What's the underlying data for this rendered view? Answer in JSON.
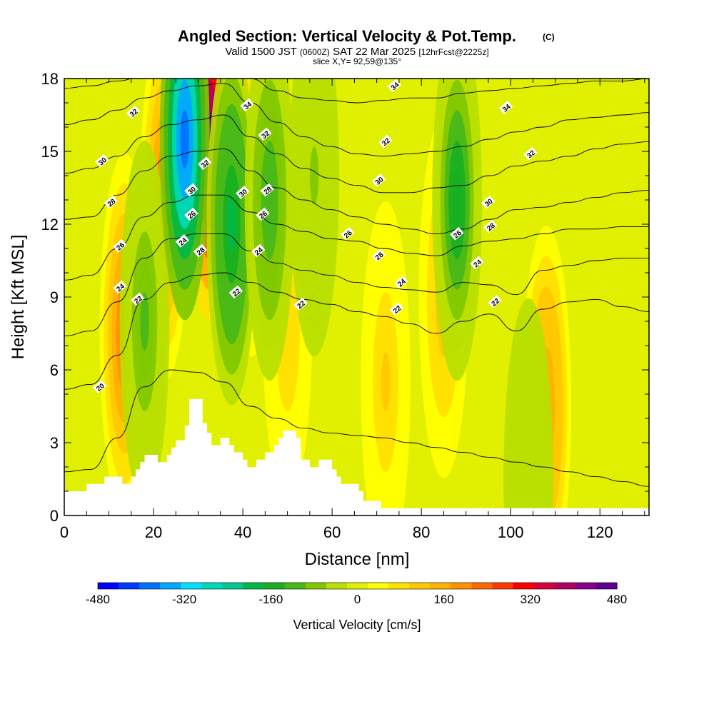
{
  "title": {
    "main": "Angled Section: Vertical Velocity & Pot.Temp.",
    "main_tag": "(C)",
    "valid_prefix": "Valid 1500 JST",
    "valid_utc": "(0600Z)",
    "valid_date": "SAT 22 Mar 2025",
    "forecast": "[12hrFcst@2225z]",
    "slice": "slice X,Y= 92,59@135°"
  },
  "colorbar": {
    "title": "Vertical Velocity [cm/s]",
    "tick_labels": [
      "-480",
      "-320",
      "-160",
      "0",
      "160",
      "320",
      "480"
    ],
    "colors": [
      "#0000ff",
      "#0038ff",
      "#0070ff",
      "#00a8ff",
      "#00e0ff",
      "#00d8b8",
      "#00c890",
      "#00b848",
      "#18b020",
      "#48b818",
      "#80c800",
      "#b8e000",
      "#e0f000",
      "#ffff00",
      "#ffe000",
      "#ffc800",
      "#ffb000",
      "#ff9000",
      "#ff6800",
      "#ff3800",
      "#ff0000",
      "#d8003c",
      "#b00060",
      "#880088",
      "#600090"
    ]
  },
  "chart_data": {
    "type": "heatmap",
    "title": "Angled Section: Vertical Velocity & Pot.Temp.",
    "xlabel": "Distance [nm]",
    "ylabel": "Height [Kft MSL]",
    "xlim": [
      0,
      131
    ],
    "ylim": [
      0,
      18
    ],
    "x_ticks": [
      0,
      20,
      40,
      60,
      80,
      100,
      120
    ],
    "y_ticks": [
      0,
      3,
      6,
      9,
      12,
      15,
      18
    ],
    "color_variable": "Vertical Velocity [cm/s]",
    "color_range": [
      -480,
      480
    ],
    "contour_variable": "Pot.Temp. (C)",
    "updrafts": [
      {
        "x": 13.5,
        "center_kft": 7.5,
        "peak_cms": 220
      },
      {
        "x": 22.5,
        "center_kft": 13.0,
        "peak_cms": 220
      },
      {
        "x": 32.5,
        "center_kft": 15.5,
        "peak_cms": 460
      },
      {
        "x": 42.0,
        "center_kft": 14.0,
        "peak_cms": 120
      },
      {
        "x": 50.0,
        "center_kft": 8.0,
        "peak_cms": 90
      },
      {
        "x": 72.0,
        "center_kft": 5.5,
        "peak_cms": 110
      },
      {
        "x": 85.0,
        "center_kft": 9.0,
        "peak_cms": 120
      },
      {
        "x": 108.0,
        "center_kft": 4.5,
        "peak_cms": 200
      }
    ],
    "downdrafts": [
      {
        "x": 18.0,
        "center_kft": 8.0,
        "peak_cms": -110
      },
      {
        "x": 27.0,
        "center_kft": 15.5,
        "peak_cms": -400
      },
      {
        "x": 37.5,
        "center_kft": 12.0,
        "peak_cms": -200
      },
      {
        "x": 46.0,
        "center_kft": 13.0,
        "peak_cms": -130
      },
      {
        "x": 56.0,
        "center_kft": 14.0,
        "peak_cms": -60
      },
      {
        "x": 88.0,
        "center_kft": 13.0,
        "peak_cms": -170
      },
      {
        "x": 104.0,
        "center_kft": 1.5,
        "peak_cms": -50
      }
    ],
    "isentrope_labels": [
      {
        "x": 8,
        "kft": 5.3,
        "value": 20
      },
      {
        "x": 12.5,
        "kft": 9.4,
        "value": 24
      },
      {
        "x": 16.5,
        "kft": 8.9,
        "value": 22
      },
      {
        "x": 12.5,
        "kft": 11.1,
        "value": 26
      },
      {
        "x": 10.5,
        "kft": 12.9,
        "value": 28
      },
      {
        "x": 8.5,
        "kft": 14.6,
        "value": 30
      },
      {
        "x": 15.5,
        "kft": 16.6,
        "value": 32
      },
      {
        "x": 26.5,
        "kft": 11.3,
        "value": 24
      },
      {
        "x": 28.5,
        "kft": 12.4,
        "value": 26
      },
      {
        "x": 28.5,
        "kft": 13.4,
        "value": 30
      },
      {
        "x": 30.5,
        "kft": 10.9,
        "value": 28
      },
      {
        "x": 31.5,
        "kft": 14.5,
        "value": 32
      },
      {
        "x": 38.5,
        "kft": 9.2,
        "value": 22
      },
      {
        "x": 41.0,
        "kft": 16.9,
        "value": 34
      },
      {
        "x": 40.0,
        "kft": 13.3,
        "value": 30
      },
      {
        "x": 45.5,
        "kft": 13.4,
        "value": 28
      },
      {
        "x": 44.5,
        "kft": 12.4,
        "value": 26
      },
      {
        "x": 43.5,
        "kft": 10.9,
        "value": 24
      },
      {
        "x": 45.0,
        "kft": 15.7,
        "value": 32
      },
      {
        "x": 53.0,
        "kft": 8.7,
        "value": 22
      },
      {
        "x": 63.5,
        "kft": 11.6,
        "value": 26
      },
      {
        "x": 70.5,
        "kft": 10.7,
        "value": 28
      },
      {
        "x": 70.5,
        "kft": 13.8,
        "value": 30
      },
      {
        "x": 72.0,
        "kft": 15.4,
        "value": 32
      },
      {
        "x": 74.0,
        "kft": 17.7,
        "value": 34
      },
      {
        "x": 75.5,
        "kft": 9.6,
        "value": 24
      },
      {
        "x": 74.5,
        "kft": 8.5,
        "value": 22
      },
      {
        "x": 88.0,
        "kft": 11.6,
        "value": 26
      },
      {
        "x": 92.5,
        "kft": 10.4,
        "value": 24
      },
      {
        "x": 95.5,
        "kft": 11.9,
        "value": 28
      },
      {
        "x": 95.0,
        "kft": 12.9,
        "value": 30
      },
      {
        "x": 96.5,
        "kft": 8.8,
        "value": 22
      },
      {
        "x": 99.0,
        "kft": 16.8,
        "value": 34
      },
      {
        "x": 104.5,
        "kft": 14.9,
        "value": 32
      }
    ],
    "isentrope_profiles": [
      {
        "value": 20,
        "kft": [
          1.8,
          1.9,
          3.2,
          5.3,
          6.0,
          5.9,
          5.5,
          4.5,
          4.0,
          3.6,
          3.4,
          3.3,
          3.2,
          3.0,
          2.8,
          2.6,
          2.4,
          2.2,
          2.0,
          1.8,
          1.6,
          1.4,
          1.2
        ]
      },
      {
        "value": 22,
        "kft": [
          5.2,
          5.4,
          6.6,
          8.9,
          9.6,
          9.9,
          10.0,
          9.6,
          9.2,
          8.9,
          8.7,
          8.4,
          8.2,
          7.9,
          7.5,
          8.0,
          8.3,
          7.6,
          8.5,
          8.8,
          8.9,
          8.6,
          8.4
        ]
      },
      {
        "value": 24,
        "kft": [
          7.4,
          7.6,
          8.8,
          10.6,
          11.4,
          11.6,
          11.6,
          10.9,
          10.4,
          10.1,
          9.9,
          9.6,
          9.4,
          9.3,
          9.2,
          9.6,
          9.5,
          9.1,
          10.1,
          10.3,
          10.5,
          10.6,
          10.6
        ]
      },
      {
        "value": 26,
        "kft": [
          9.7,
          9.9,
          11.0,
          12.3,
          12.9,
          13.2,
          13.2,
          12.5,
          12.0,
          11.7,
          11.4,
          11.3,
          11.0,
          10.8,
          10.7,
          11.1,
          11.3,
          11.4,
          11.6,
          11.8,
          11.8,
          11.9,
          11.9
        ]
      },
      {
        "value": 28,
        "kft": [
          12.2,
          12.3,
          13.2,
          14.2,
          14.8,
          15.0,
          15.1,
          14.2,
          13.5,
          13.0,
          12.6,
          12.3,
          12.0,
          11.8,
          11.6,
          11.8,
          12.2,
          12.6,
          12.7,
          12.9,
          13.1,
          13.3,
          13.4
        ]
      },
      {
        "value": 30,
        "kft": [
          14.1,
          14.3,
          14.8,
          15.6,
          16.1,
          16.3,
          16.5,
          15.6,
          14.9,
          14.3,
          13.9,
          13.6,
          13.3,
          13.3,
          13.5,
          13.6,
          14.0,
          14.4,
          14.6,
          14.8,
          15.1,
          15.3,
          15.4
        ]
      },
      {
        "value": 32,
        "kft": [
          16.1,
          16.3,
          16.7,
          17.2,
          17.5,
          17.7,
          17.8,
          17.0,
          16.2,
          15.6,
          15.2,
          14.9,
          14.8,
          14.9,
          15.0,
          15.2,
          15.5,
          15.8,
          16.0,
          16.3,
          16.4,
          16.5,
          16.6
        ]
      },
      {
        "value": 34,
        "kft": [
          17.6,
          17.7,
          17.9,
          18.1,
          18.2,
          18.3,
          18.3,
          18.0,
          17.5,
          17.2,
          17.1,
          17.0,
          17.1,
          17.2,
          17.2,
          17.4,
          17.5,
          17.6,
          17.7,
          17.8,
          17.9,
          17.9,
          18.0
        ]
      }
    ],
    "terrain_kft": [
      [
        0,
        1.0
      ],
      [
        5,
        1.0
      ],
      [
        5,
        1.3
      ],
      [
        9,
        1.3
      ],
      [
        9,
        1.6
      ],
      [
        13,
        1.6
      ],
      [
        13,
        1.3
      ],
      [
        15,
        1.3
      ],
      [
        15,
        1.6
      ],
      [
        16,
        1.6
      ],
      [
        16,
        1.9
      ],
      [
        17,
        1.9
      ],
      [
        17,
        2.2
      ],
      [
        18,
        2.2
      ],
      [
        18,
        2.5
      ],
      [
        21,
        2.5
      ],
      [
        21,
        2.2
      ],
      [
        23,
        2.2
      ],
      [
        23,
        2.5
      ],
      [
        24,
        2.5
      ],
      [
        24,
        2.8
      ],
      [
        25,
        2.8
      ],
      [
        25,
        3.1
      ],
      [
        27,
        3.1
      ],
      [
        27,
        3.7
      ],
      [
        28,
        3.7
      ],
      [
        28,
        4.8
      ],
      [
        31,
        4.8
      ],
      [
        31,
        3.8
      ],
      [
        32,
        3.8
      ],
      [
        32,
        3.4
      ],
      [
        33,
        3.4
      ],
      [
        33,
        2.9
      ],
      [
        35,
        2.9
      ],
      [
        35,
        3.2
      ],
      [
        37,
        3.2
      ],
      [
        37,
        2.9
      ],
      [
        38,
        2.9
      ],
      [
        38,
        2.6
      ],
      [
        40,
        2.6
      ],
      [
        40,
        2.3
      ],
      [
        41,
        2.3
      ],
      [
        41,
        2.0
      ],
      [
        43,
        2.0
      ],
      [
        43,
        2.3
      ],
      [
        45,
        2.3
      ],
      [
        45,
        2.6
      ],
      [
        47,
        2.6
      ],
      [
        47,
        2.9
      ],
      [
        48,
        2.9
      ],
      [
        48,
        3.2
      ],
      [
        49,
        3.2
      ],
      [
        49,
        3.5
      ],
      [
        52,
        3.5
      ],
      [
        52,
        3.2
      ],
      [
        53,
        3.2
      ],
      [
        53,
        2.3
      ],
      [
        55,
        2.3
      ],
      [
        55,
        2.0
      ],
      [
        57,
        2.0
      ],
      [
        57,
        2.3
      ],
      [
        60,
        2.3
      ],
      [
        60,
        1.9
      ],
      [
        61,
        1.9
      ],
      [
        61,
        1.6
      ],
      [
        62,
        1.6
      ],
      [
        62,
        1.3
      ],
      [
        66,
        1.3
      ],
      [
        66,
        1.0
      ],
      [
        67,
        1.0
      ],
      [
        67,
        0.6
      ],
      [
        71,
        0.6
      ],
      [
        71,
        0.3
      ],
      [
        131,
        0.3
      ]
    ]
  }
}
